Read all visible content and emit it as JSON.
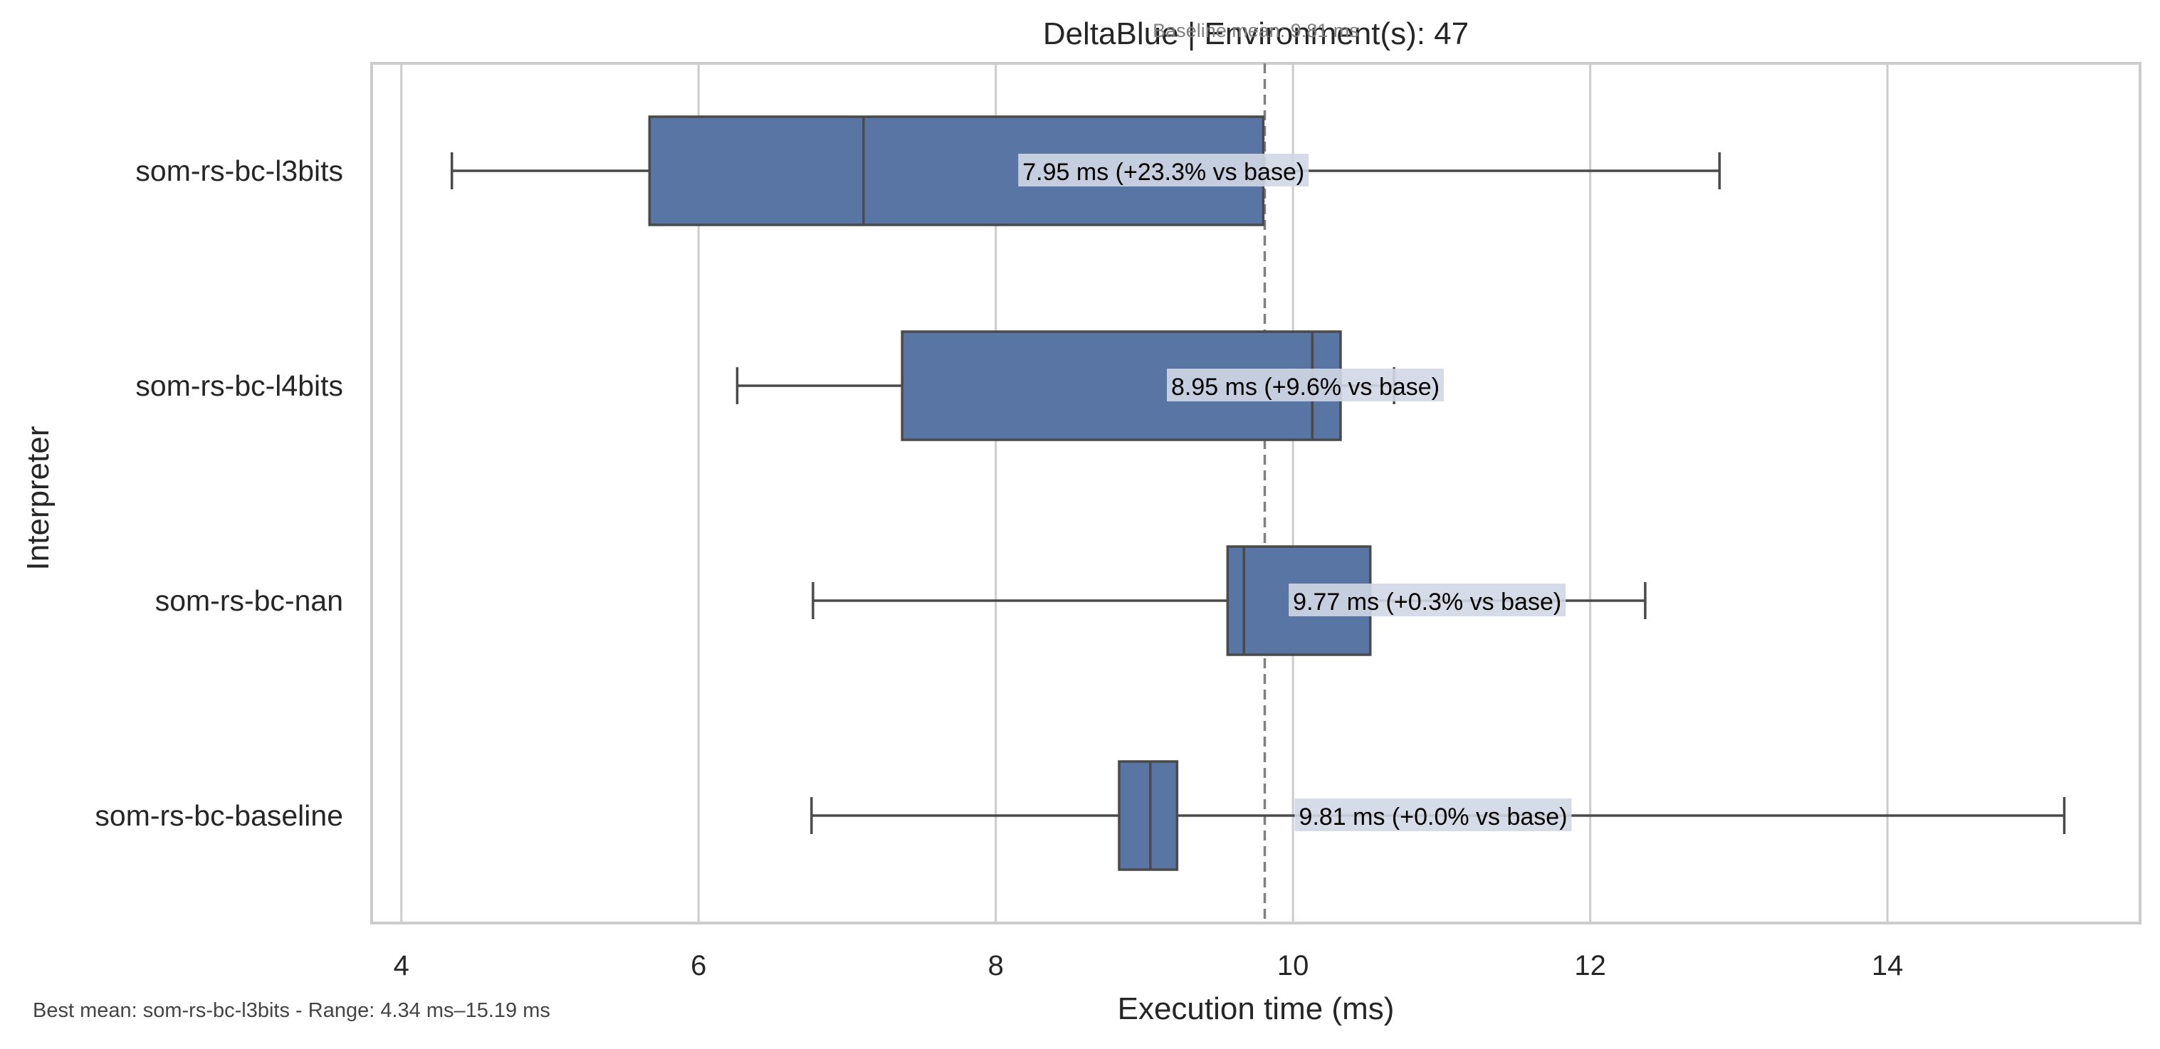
{
  "chart_data": {
    "type": "box",
    "orientation": "horizontal",
    "title": "DeltaBlue | Environment(s): 47",
    "subtitle": "Baseline mean: 9.81 ms",
    "xlabel": "Execution time (ms)",
    "ylabel": "Interpreter",
    "xlim": [
      3.8,
      15.7
    ],
    "xticks": [
      4,
      6,
      8,
      10,
      12,
      14
    ],
    "xtick_labels": [
      "4",
      "6",
      "8",
      "10",
      "12",
      "14"
    ],
    "grid": "vertical",
    "baseline_mean": 9.81,
    "categories": [
      "som-rs-bc-l3bits",
      "som-rs-bc-l4bits",
      "som-rs-bc-nan",
      "som-rs-bc-baseline"
    ],
    "boxes": [
      {
        "name": "som-rs-bc-l3bits",
        "whisker_low": 4.34,
        "q1": 5.67,
        "median": 7.11,
        "q3": 9.8,
        "whisker_high": 12.87,
        "annotation": "7.95 ms  (+23.3% vs base)",
        "label_x": 8.18
      },
      {
        "name": "som-rs-bc-l4bits",
        "whisker_low": 6.26,
        "q1": 7.37,
        "median": 10.13,
        "q3": 10.32,
        "whisker_high": 10.68,
        "annotation": "8.95 ms  (+9.6% vs base)",
        "label_x": 9.18
      },
      {
        "name": "som-rs-bc-nan",
        "whisker_low": 6.77,
        "q1": 9.56,
        "median": 9.67,
        "q3": 10.52,
        "whisker_high": 12.37,
        "annotation": "9.77 ms  (+0.3% vs base)",
        "label_x": 10.0
      },
      {
        "name": "som-rs-bc-baseline",
        "whisker_low": 6.76,
        "q1": 8.83,
        "median": 9.04,
        "q3": 9.22,
        "whisker_high": 15.19,
        "annotation": "9.81 ms  (+0.0% vs base)",
        "label_x": 10.04
      }
    ],
    "colors": {
      "box_fill": "#5875a4",
      "box_edge": "#4a4a4a",
      "grid": "#cccccc",
      "baseline_line": "#808080",
      "label_bg": "#d2d8e4"
    }
  },
  "footer": {
    "note": "Best mean: som-rs-bc-l3bits - Range: 4.34 ms–15.19 ms"
  }
}
